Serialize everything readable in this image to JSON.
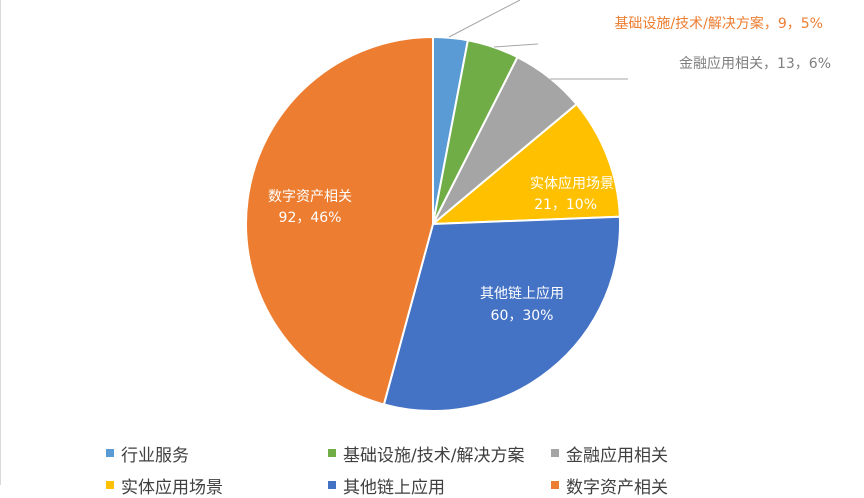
{
  "chart_data": {
    "type": "pie",
    "title": "",
    "slices": [
      {
        "label": "行业服务",
        "value": 6,
        "percent": "3%",
        "color": "#5b9bd5"
      },
      {
        "label": "基础设施/技术/解决方案",
        "value": 9,
        "percent": "5%",
        "color": "#70ad47"
      },
      {
        "label": "金融应用相关",
        "value": 13,
        "percent": "6%",
        "color": "#a5a5a5"
      },
      {
        "label": "实体应用场景",
        "value": 21,
        "percent": "10%",
        "color": "#ffc000"
      },
      {
        "label": "其他链上应用",
        "value": 60,
        "percent": "30%",
        "color": "#4472c4"
      },
      {
        "label": "数字资产相关",
        "value": 92,
        "percent": "46%",
        "color": "#ed7d31"
      }
    ],
    "data_labels": {
      "infra": {
        "name": "基础设施/技术/解决方案",
        "text": "基础设施/技术/解决方案，9，5%"
      },
      "finance": {
        "name": "金融应用相关",
        "text": "金融应用相关，13，6%"
      },
      "physical": {
        "name": "实体应用场景",
        "value_text": "21，10%"
      },
      "other": {
        "name": "其他链上应用",
        "value_text": "60，30%"
      },
      "digital": {
        "name": "数字资产相关",
        "value_text": "92，46%"
      }
    },
    "legend": {
      "position": "bottom",
      "items": [
        {
          "label": "行业服务",
          "color": "#5b9bd5"
        },
        {
          "label": "基础设施/技术/解决方案",
          "color": "#70ad47"
        },
        {
          "label": "金融应用相关",
          "color": "#a5a5a5"
        },
        {
          "label": "实体应用场景",
          "color": "#ffc000"
        },
        {
          "label": "其他链上应用",
          "color": "#4472c4"
        },
        {
          "label": "数字资产相关",
          "color": "#ed7d31"
        }
      ]
    }
  }
}
